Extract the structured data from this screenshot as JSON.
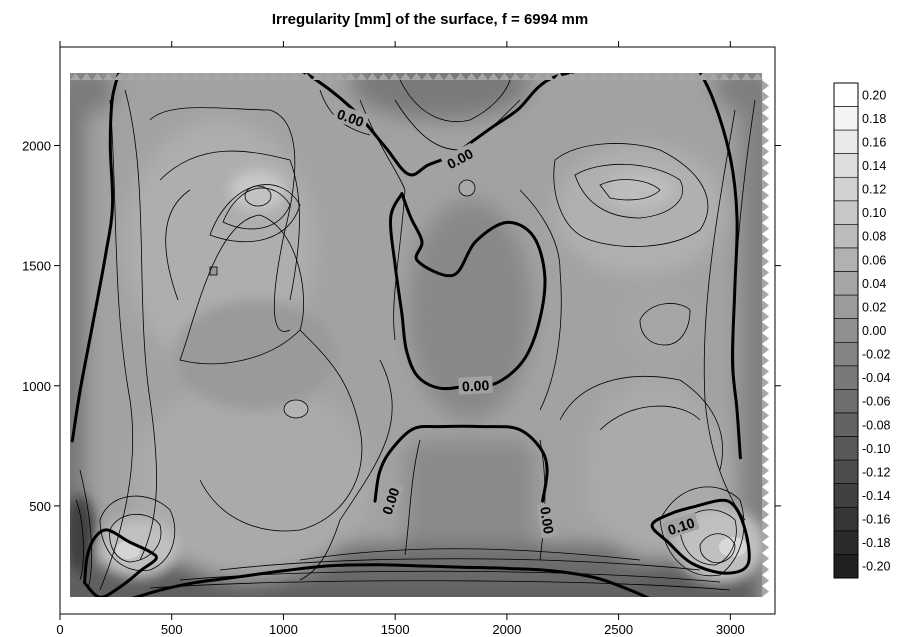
{
  "chart_data": {
    "type": "heatmap",
    "subtype": "contour",
    "title": "Irregularity [mm] of the surface,  f = 6994 mm",
    "xlabel": "",
    "ylabel": "",
    "xlim": [
      0,
      3200
    ],
    "ylim": [
      50,
      2410
    ],
    "x_ticks": [
      0,
      500,
      1000,
      1500,
      2000,
      2500,
      3000
    ],
    "x_tick_labels": [
      "0",
      "500",
      "1000",
      "1500",
      "2000",
      "2500",
      "3000"
    ],
    "y_ticks": [
      500,
      1000,
      1500,
      2000
    ],
    "y_tick_labels": [
      "500",
      "1000",
      "1500",
      "2000"
    ],
    "grid": false,
    "legend_position": "right",
    "colorbar": {
      "levels": [
        0.2,
        0.18,
        0.16,
        0.14,
        0.12,
        0.1,
        0.08,
        0.06,
        0.04,
        0.02,
        0.0,
        -0.02,
        -0.04,
        -0.06,
        -0.08,
        -0.1,
        -0.12,
        -0.14,
        -0.16,
        -0.18,
        -0.2
      ],
      "labels": [
        "0.20",
        "0.18",
        "0.16",
        "0.14",
        "0.12",
        "0.10",
        "0.08",
        "0.06",
        "0.04",
        "0.02",
        "0.00",
        "-0.02",
        "-0.04",
        "-0.06",
        "-0.08",
        "-0.10",
        "-0.12",
        "-0.14",
        "-0.16",
        "-0.18",
        "-0.20"
      ],
      "color_max": "#ffffff",
      "color_min": "#202020"
    },
    "contour_labels": [
      {
        "text": "0.00",
        "x": 1300,
        "y": 2115,
        "angle": 20
      },
      {
        "text": "0.00",
        "x": 1790,
        "y": 1945,
        "angle": -28
      },
      {
        "text": "0.00",
        "x": 1860,
        "y": 1000,
        "angle": -3
      },
      {
        "text": "0.00",
        "x": 1480,
        "y": 520,
        "angle": -72
      },
      {
        "text": "0.00",
        "x": 2180,
        "y": 440,
        "angle": 82
      },
      {
        "text": "0.10",
        "x": 2780,
        "y": 415,
        "angle": -18
      }
    ],
    "zero_contours": [
      {
        "name": "left",
        "points": [
          [
            55,
            770
          ],
          [
            90,
            980
          ],
          [
            145,
            1250
          ],
          [
            205,
            1550
          ],
          [
            235,
            1750
          ],
          [
            225,
            2000
          ],
          [
            235,
            2200
          ],
          [
            280,
            2350
          ]
        ]
      },
      {
        "name": "top-left",
        "points": [
          [
            420,
            2320
          ],
          [
            600,
            2350
          ],
          [
            900,
            2380
          ],
          [
            1100,
            2300
          ],
          [
            1300,
            2160
          ],
          [
            1450,
            2000
          ],
          [
            1560,
            1880
          ],
          [
            1650,
            1920
          ],
          [
            1760,
            1960
          ],
          [
            1850,
            2020
          ],
          [
            1940,
            2080
          ],
          [
            2050,
            2150
          ],
          [
            2200,
            2280
          ],
          [
            2500,
            2340
          ],
          [
            2600,
            2380
          ],
          [
            2700,
            2320
          ],
          [
            2800,
            2360
          ]
        ]
      },
      {
        "name": "right",
        "points": [
          [
            2820,
            2380
          ],
          [
            2920,
            2200
          ],
          [
            3000,
            1950
          ],
          [
            3030,
            1700
          ],
          [
            3020,
            1400
          ],
          [
            3010,
            1100
          ],
          [
            3030,
            900
          ],
          [
            3045,
            700
          ]
        ]
      },
      {
        "name": "center-island",
        "points": [
          [
            1530,
            1800
          ],
          [
            1570,
            1700
          ],
          [
            1620,
            1600
          ],
          [
            1600,
            1520
          ],
          [
            1760,
            1460
          ],
          [
            1860,
            1600
          ],
          [
            2000,
            1680
          ],
          [
            2120,
            1620
          ],
          [
            2170,
            1450
          ],
          [
            2140,
            1250
          ],
          [
            2070,
            1100
          ],
          [
            1950,
            1010
          ],
          [
            1830,
            1000
          ],
          [
            1700,
            990
          ],
          [
            1600,
            1040
          ],
          [
            1550,
            1150
          ],
          [
            1530,
            1300
          ],
          [
            1500,
            1500
          ],
          [
            1480,
            1700
          ],
          [
            1530,
            1800
          ]
        ]
      },
      {
        "name": "bottom-u",
        "points": [
          [
            1410,
            520
          ],
          [
            1430,
            640
          ],
          [
            1480,
            730
          ],
          [
            1580,
            820
          ],
          [
            1700,
            830
          ],
          [
            1900,
            830
          ],
          [
            2050,
            820
          ],
          [
            2150,
            740
          ],
          [
            2180,
            650
          ],
          [
            2160,
            520
          ]
        ]
      },
      {
        "name": "bottom-left",
        "points": [
          [
            100,
            95
          ],
          [
            150,
            90
          ],
          [
            300,
            110
          ],
          [
            450,
            150
          ],
          [
            600,
            180
          ],
          [
            800,
            205
          ],
          [
            1000,
            230
          ],
          [
            1200,
            250
          ],
          [
            1400,
            255
          ],
          [
            1600,
            250
          ],
          [
            1800,
            245
          ],
          [
            2000,
            240
          ],
          [
            2200,
            230
          ],
          [
            2400,
            200
          ],
          [
            2550,
            150
          ],
          [
            2650,
            110
          ]
        ]
      },
      {
        "name": "left-high",
        "points": [
          [
            110,
            180
          ],
          [
            120,
            280
          ],
          [
            150,
            360
          ],
          [
            210,
            400
          ],
          [
            310,
            350
          ],
          [
            400,
            310
          ],
          [
            430,
            280
          ],
          [
            360,
            230
          ],
          [
            280,
            170
          ],
          [
            180,
            120
          ],
          [
            110,
            180
          ]
        ]
      },
      {
        "name": "right-high",
        "points": [
          [
            2850,
            500
          ],
          [
            2740,
            470
          ],
          [
            2650,
            420
          ],
          [
            2720,
            350
          ],
          [
            2830,
            260
          ],
          [
            2980,
            220
          ],
          [
            3080,
            260
          ],
          [
            3060,
            420
          ],
          [
            2990,
            520
          ],
          [
            2850,
            500
          ]
        ]
      }
    ]
  }
}
